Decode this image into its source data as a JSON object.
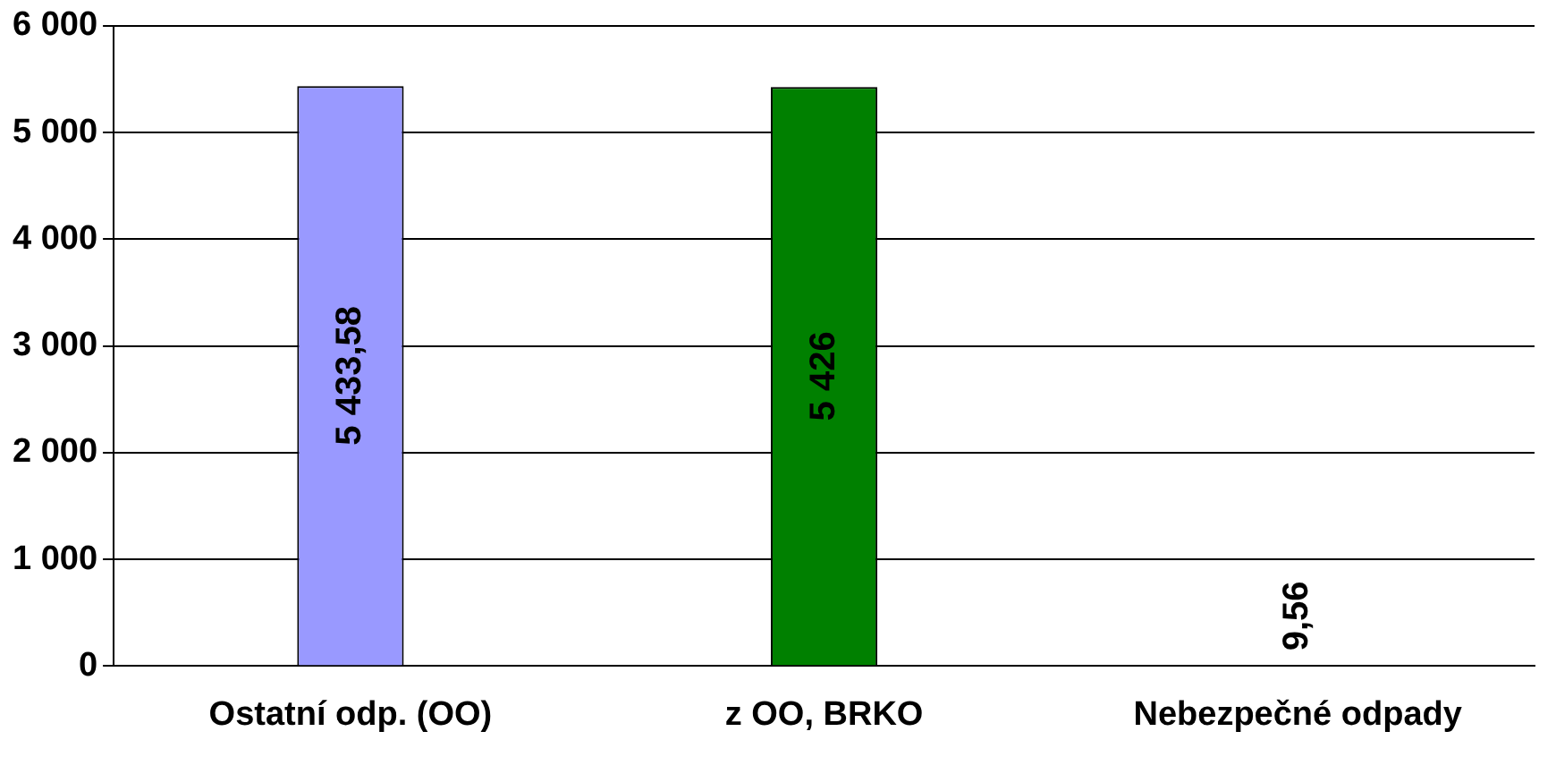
{
  "chart_data": {
    "type": "bar",
    "categories": [
      "Ostatní odp. (OO)",
      "z OO, BRKO",
      "Nebezpečné odpady"
    ],
    "values": [
      5433.58,
      5426,
      9.56
    ],
    "colors": [
      "#9999ff",
      "#008000",
      "#cccc99"
    ],
    "value_labels": [
      "5 433,58",
      "5 426",
      "9,56"
    ],
    "ylim": [
      0,
      6000
    ],
    "yticks": [
      {
        "value": 0,
        "label": "0"
      },
      {
        "value": 1000,
        "label": "1 000"
      },
      {
        "value": 2000,
        "label": "2 000"
      },
      {
        "value": 3000,
        "label": "3 000"
      },
      {
        "value": 4000,
        "label": "4 000"
      },
      {
        "value": 5000,
        "label": "5 000"
      },
      {
        "value": 6000,
        "label": "6 000"
      }
    ],
    "grid": "y"
  }
}
